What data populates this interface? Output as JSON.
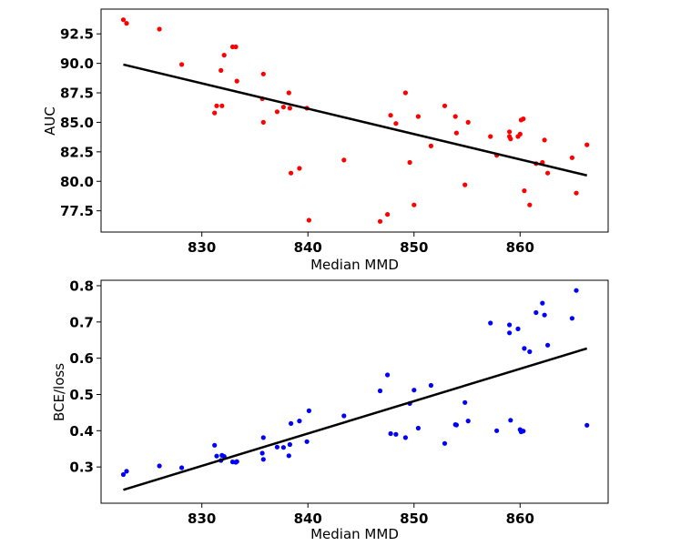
{
  "chart_data": [
    {
      "type": "scatter",
      "xlabel": "Median MMD",
      "ylabel": "AUC",
      "xlim": [
        820.5,
        868.3
      ],
      "ylim": [
        75.7,
        94.6
      ],
      "xticks": [
        830,
        840,
        850,
        860
      ],
      "xtick_labels": [
        "830",
        "840",
        "850",
        "860"
      ],
      "yticks": [
        77.5,
        80.0,
        82.5,
        85.0,
        87.5,
        90.0,
        92.5
      ],
      "ytick_labels": [
        "77.5",
        "80.0",
        "82.5",
        "85.0",
        "87.5",
        "90.0",
        "92.5"
      ],
      "grid": false,
      "point_color": "#ff0000",
      "fit_line": {
        "color": "#000000",
        "x": [
          822.6,
          866.3
        ],
        "y": [
          89.9,
          80.5
        ]
      },
      "points": [
        [
          822.6,
          93.7
        ],
        [
          822.9,
          93.4
        ],
        [
          826.0,
          92.9
        ],
        [
          828.1,
          89.9
        ],
        [
          831.2,
          85.8
        ],
        [
          831.4,
          86.4
        ],
        [
          831.8,
          89.4
        ],
        [
          831.9,
          86.4
        ],
        [
          832.1,
          90.7
        ],
        [
          832.9,
          91.4
        ],
        [
          833.2,
          91.4
        ],
        [
          833.3,
          88.5
        ],
        [
          835.7,
          87.0
        ],
        [
          835.8,
          89.1
        ],
        [
          835.8,
          85.0
        ],
        [
          837.1,
          85.9
        ],
        [
          837.7,
          86.3
        ],
        [
          838.2,
          87.5
        ],
        [
          838.3,
          86.2
        ],
        [
          838.4,
          80.7
        ],
        [
          839.2,
          81.1
        ],
        [
          839.9,
          86.2
        ],
        [
          840.1,
          76.7
        ],
        [
          843.4,
          81.8
        ],
        [
          846.8,
          76.6
        ],
        [
          847.5,
          77.2
        ],
        [
          847.8,
          85.6
        ],
        [
          848.3,
          84.9
        ],
        [
          849.2,
          87.5
        ],
        [
          849.6,
          81.6
        ],
        [
          850.0,
          78.0
        ],
        [
          850.4,
          85.5
        ],
        [
          851.6,
          83.0
        ],
        [
          852.9,
          86.4
        ],
        [
          853.9,
          85.5
        ],
        [
          854.0,
          84.1
        ],
        [
          854.8,
          79.7
        ],
        [
          855.1,
          85.0
        ],
        [
          857.2,
          83.8
        ],
        [
          857.8,
          82.2
        ],
        [
          859.0,
          84.2
        ],
        [
          859.0,
          83.8
        ],
        [
          859.1,
          83.6
        ],
        [
          859.8,
          83.8
        ],
        [
          860.0,
          84.0
        ],
        [
          860.1,
          85.2
        ],
        [
          860.3,
          85.3
        ],
        [
          860.4,
          79.2
        ],
        [
          860.9,
          78.0
        ],
        [
          861.5,
          81.5
        ],
        [
          862.1,
          81.6
        ],
        [
          862.3,
          83.5
        ],
        [
          862.6,
          80.7
        ],
        [
          864.9,
          82.0
        ],
        [
          865.3,
          79.0
        ],
        [
          866.3,
          83.1
        ]
      ]
    },
    {
      "type": "scatter",
      "xlabel": "Median MMD",
      "ylabel": "BCE/loss",
      "xlim": [
        820.5,
        868.3
      ],
      "ylim": [
        0.2,
        0.815
      ],
      "xticks": [
        830,
        840,
        850,
        860
      ],
      "xtick_labels": [
        "830",
        "840",
        "850",
        "860"
      ],
      "yticks": [
        0.3,
        0.4,
        0.5,
        0.6,
        0.7,
        0.8
      ],
      "ytick_labels": [
        "0.3",
        "0.4",
        "0.5",
        "0.6",
        "0.7",
        "0.8"
      ],
      "grid": false,
      "point_color": "#0000ff",
      "fit_line": {
        "color": "#000000",
        "x": [
          822.6,
          866.3
        ],
        "y": [
          0.237,
          0.627
        ]
      },
      "points": [
        [
          822.6,
          0.279
        ],
        [
          822.9,
          0.288
        ],
        [
          826.0,
          0.303
        ],
        [
          828.1,
          0.298
        ],
        [
          831.2,
          0.36
        ],
        [
          831.4,
          0.33
        ],
        [
          831.8,
          0.318
        ],
        [
          831.9,
          0.332
        ],
        [
          832.1,
          0.329
        ],
        [
          832.9,
          0.314
        ],
        [
          833.2,
          0.313
        ],
        [
          833.3,
          0.315
        ],
        [
          835.7,
          0.338
        ],
        [
          835.8,
          0.381
        ],
        [
          835.8,
          0.321
        ],
        [
          837.1,
          0.355
        ],
        [
          837.7,
          0.354
        ],
        [
          838.2,
          0.331
        ],
        [
          838.3,
          0.362
        ],
        [
          838.4,
          0.42
        ],
        [
          839.2,
          0.427
        ],
        [
          839.9,
          0.37
        ],
        [
          840.1,
          0.455
        ],
        [
          843.4,
          0.441
        ],
        [
          846.8,
          0.51
        ],
        [
          847.5,
          0.554
        ],
        [
          847.8,
          0.392
        ],
        [
          848.3,
          0.39
        ],
        [
          849.2,
          0.381
        ],
        [
          849.6,
          0.475
        ],
        [
          850.0,
          0.512
        ],
        [
          850.4,
          0.407
        ],
        [
          851.6,
          0.525
        ],
        [
          852.9,
          0.365
        ],
        [
          853.9,
          0.417
        ],
        [
          854.0,
          0.416
        ],
        [
          854.8,
          0.478
        ],
        [
          855.1,
          0.427
        ],
        [
          857.2,
          0.697
        ],
        [
          857.8,
          0.4
        ],
        [
          859.0,
          0.692
        ],
        [
          859.0,
          0.67
        ],
        [
          859.1,
          0.429
        ],
        [
          859.8,
          0.681
        ],
        [
          860.0,
          0.403
        ],
        [
          860.1,
          0.397
        ],
        [
          860.3,
          0.399
        ],
        [
          860.4,
          0.627
        ],
        [
          860.9,
          0.618
        ],
        [
          861.5,
          0.726
        ],
        [
          862.1,
          0.752
        ],
        [
          862.3,
          0.719
        ],
        [
          862.6,
          0.636
        ],
        [
          864.9,
          0.71
        ],
        [
          865.3,
          0.787
        ],
        [
          866.3,
          0.415
        ]
      ]
    }
  ]
}
